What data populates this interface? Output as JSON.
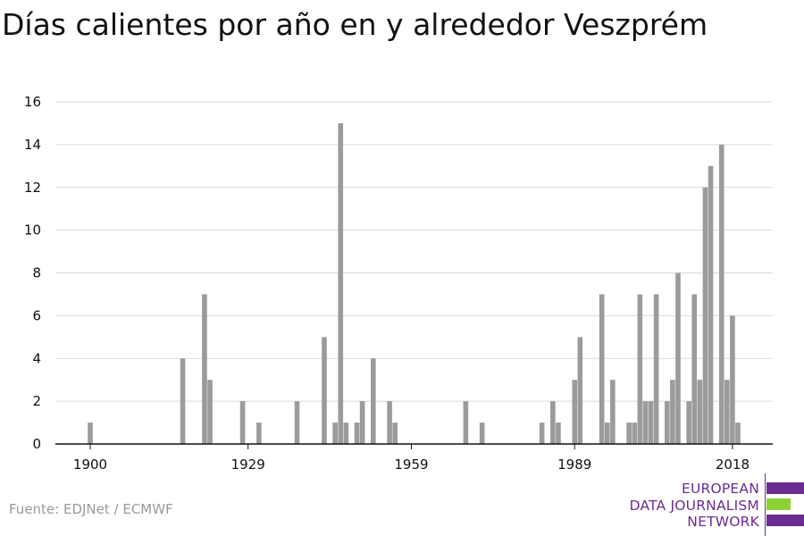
{
  "title": "Días calientes por año en y alrededor Veszprém",
  "source": "Fuente: EDJNet / ECMWF",
  "logo": {
    "lines": [
      "EUROPEAN",
      "DATA JOURNALISM",
      "NETWORK"
    ],
    "colors": {
      "primary": "#6a2c91",
      "accent": "#8cd234"
    }
  },
  "colors": {
    "bar": "#9b9b9b",
    "grid": "#d9d9d9",
    "axis": "#111111",
    "tick_text": "#111111"
  },
  "chart_data": {
    "type": "bar",
    "title": "Días calientes por año en y alrededor Veszprém",
    "xlabel": "",
    "ylabel": "",
    "xlim": [
      1900,
      2022
    ],
    "ylim": [
      0,
      16
    ],
    "x_ticks": [
      1900,
      1929,
      1959,
      1989,
      2018
    ],
    "y_ticks": [
      0,
      2,
      4,
      6,
      8,
      10,
      12,
      14,
      16
    ],
    "grid": true,
    "legend": "none",
    "x": [
      1900,
      1917,
      1921,
      1922,
      1928,
      1931,
      1938,
      1943,
      1945,
      1946,
      1947,
      1949,
      1950,
      1952,
      1955,
      1956,
      1969,
      1972,
      1983,
      1985,
      1986,
      1989,
      1990,
      1994,
      1995,
      1996,
      1999,
      2000,
      2001,
      2002,
      2003,
      2004,
      2006,
      2007,
      2008,
      2010,
      2011,
      2012,
      2013,
      2014,
      2016,
      2017,
      2018,
      2019
    ],
    "values": [
      1,
      4,
      7,
      3,
      2,
      1,
      2,
      5,
      1,
      15,
      1,
      1,
      2,
      4,
      2,
      1,
      2,
      1,
      1,
      2,
      1,
      3,
      5,
      7,
      1,
      3,
      1,
      1,
      7,
      2,
      2,
      7,
      2,
      3,
      8,
      2,
      7,
      3,
      12,
      13,
      14,
      3,
      6,
      1
    ]
  }
}
